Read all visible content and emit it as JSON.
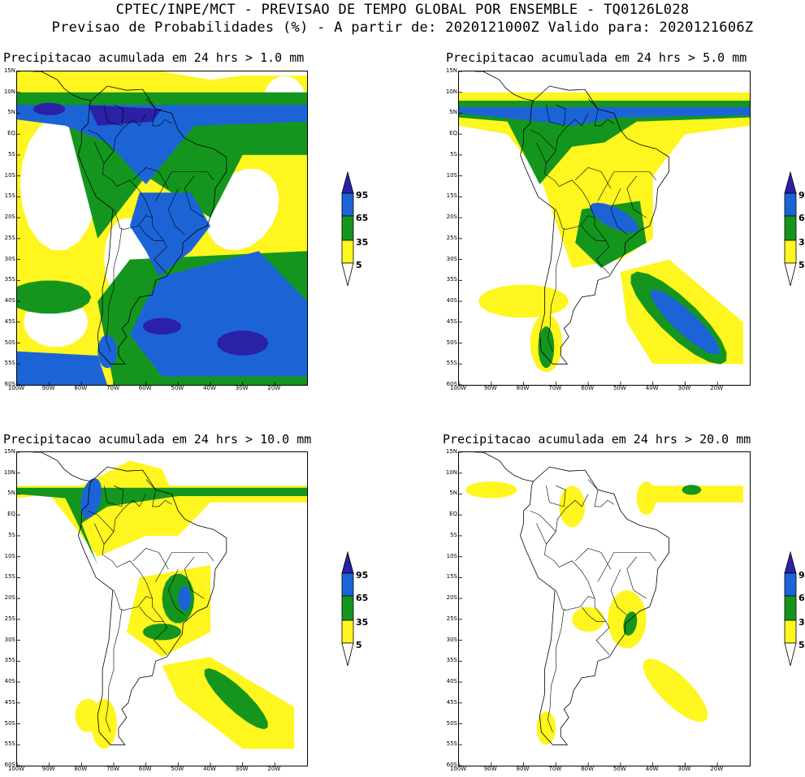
{
  "header": {
    "line1": "CPTEC/INPE/MCT - PREVISAO DE TEMPO GLOBAL POR ENSEMBLE - TQ0126L028",
    "line2": "Previsao de Probabilidades (%) -  A partir de: 2020121000Z  Valido para: 2020121606Z"
  },
  "panels": [
    {
      "title": "Precipitacao acumulada em 24 hrs > 1.0 mm"
    },
    {
      "title": "Precipitacao acumulada em 24 hrs > 5.0 mm"
    },
    {
      "title": "Precipitacao acumulada em 24 hrs > 10.0 mm"
    },
    {
      "title": "Precipitacao acumulada em 24 hrs > 20.0 mm"
    }
  ],
  "axes": {
    "lat_labels": [
      "15N",
      "10N",
      "5N",
      "EQ",
      "5S",
      "10S",
      "15S",
      "20S",
      "25S",
      "30S",
      "35S",
      "40S",
      "45S",
      "50S",
      "55S",
      "60S"
    ],
    "lon_labels": [
      "100W",
      "90W",
      "80W",
      "70W",
      "60W",
      "50W",
      "40W",
      "30W",
      "20W"
    ]
  },
  "legend": {
    "labels": [
      "95",
      "65",
      "35",
      "5"
    ],
    "colors": {
      "dark_blue": "#2b21a6",
      "blue": "#1c64d6",
      "green": "#14961e",
      "yellow": "#fff51f",
      "white": "#ffffff"
    }
  }
}
